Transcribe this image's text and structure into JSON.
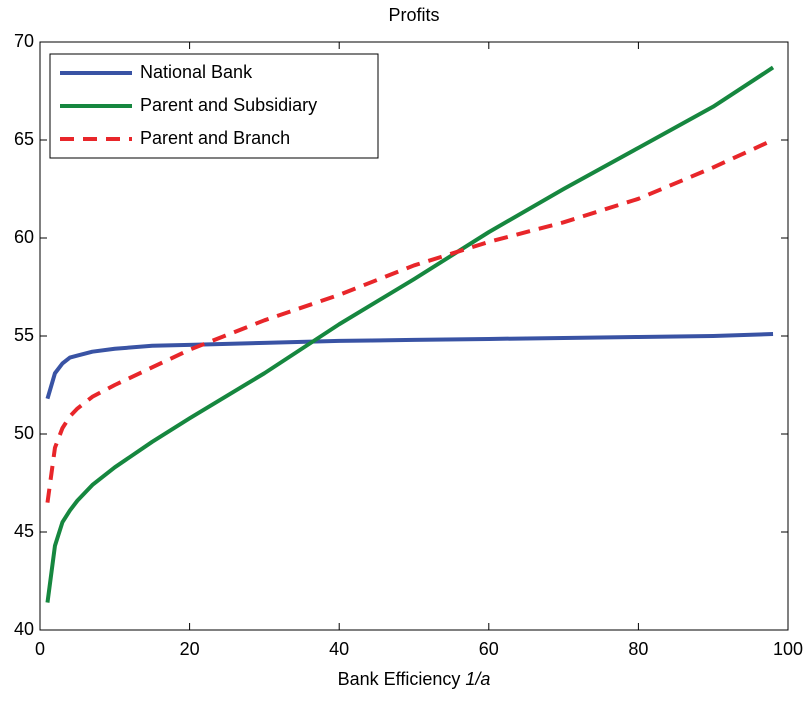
{
  "chart_data": {
    "type": "line",
    "title": "Profits",
    "xlabel": [
      "Bank Efficiency",
      "1/a"
    ],
    "x": [
      1,
      2,
      3,
      4,
      5,
      7,
      10,
      15,
      20,
      30,
      40,
      50,
      60,
      70,
      80,
      90,
      98
    ],
    "series": [
      {
        "name": "National Bank",
        "color": "#3953a4",
        "style": "solid",
        "values": [
          51.8,
          53.1,
          53.6,
          53.9,
          54.0,
          54.2,
          54.35,
          54.5,
          54.55,
          54.65,
          54.75,
          54.8,
          54.85,
          54.9,
          54.95,
          55.0,
          55.1
        ]
      },
      {
        "name": "Parent and Subsidiary",
        "color": "#16873f",
        "style": "solid",
        "values": [
          41.4,
          44.3,
          45.5,
          46.1,
          46.6,
          47.4,
          48.3,
          49.6,
          50.8,
          53.1,
          55.6,
          57.9,
          60.3,
          62.5,
          64.6,
          66.7,
          68.7
        ]
      },
      {
        "name": "Parent and Branch",
        "color": "#e8262a",
        "style": "dashed",
        "values": [
          46.5,
          49.3,
          50.3,
          50.9,
          51.3,
          51.9,
          52.5,
          53.4,
          54.3,
          55.8,
          57.1,
          58.6,
          59.8,
          60.8,
          62.0,
          63.6,
          65.0
        ]
      }
    ],
    "xlim": [
      0,
      100
    ],
    "xticks": [
      0,
      20,
      40,
      60,
      80,
      100
    ],
    "ylim": [
      40,
      70
    ],
    "yticks": [
      40,
      45,
      50,
      55,
      60,
      65,
      70
    ],
    "grid": false,
    "legend": "upper left"
  }
}
